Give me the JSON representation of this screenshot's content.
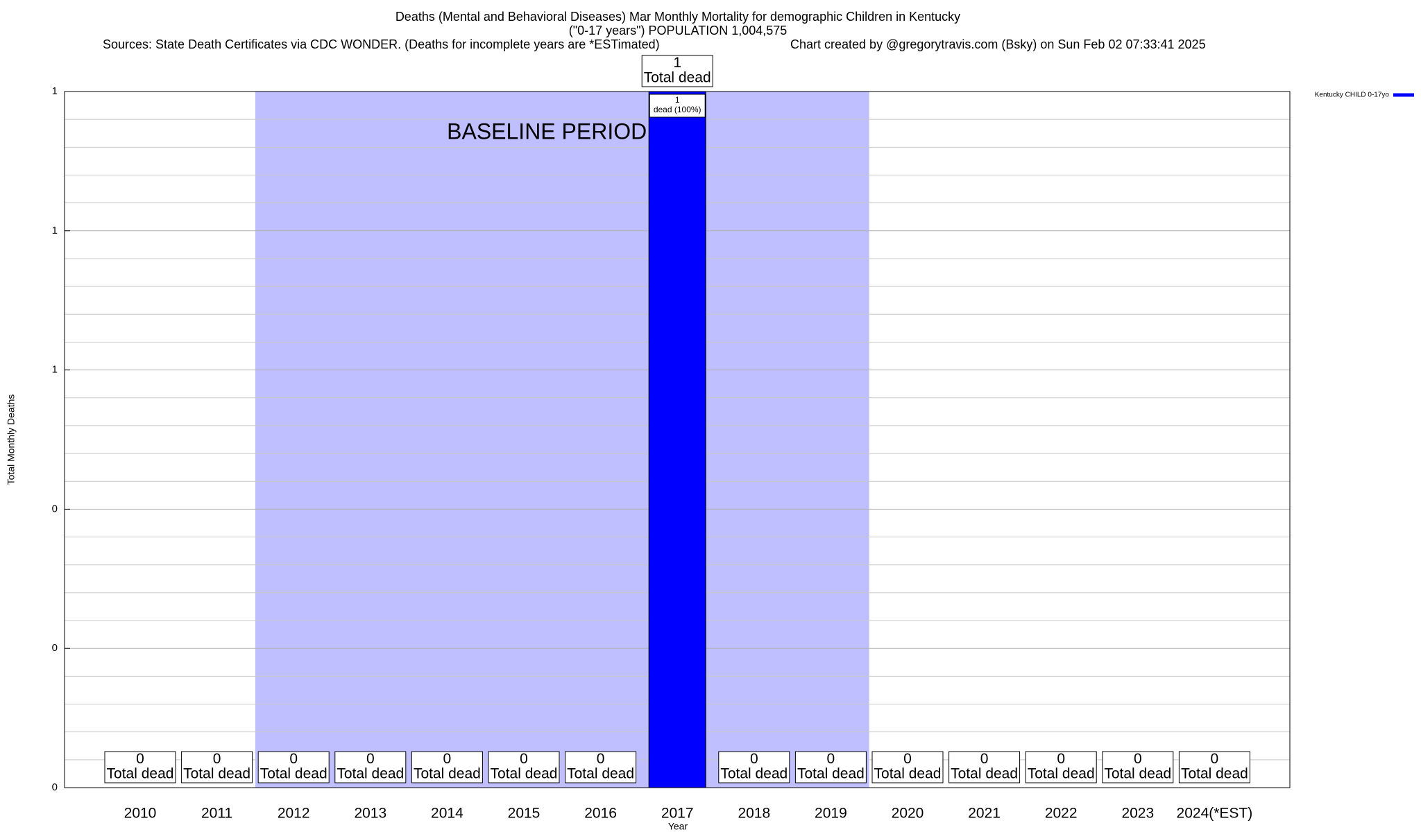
{
  "chart_data": {
    "type": "bar",
    "title": "Deaths (Mental and Behavioral Diseases) Mar Monthly Mortality for demographic Children in Kentucky",
    "subtitle": "(\"0-17 years\") POPULATION 1,004,575",
    "sources": "Sources: State Death Certificates via CDC WONDER. (Deaths for incomplete years are *ESTimated)",
    "credit": "Chart created by @gregorytravis.com (Bsky) on Sun Feb 02 07:33:41 2025",
    "x_label": "Year",
    "y_label": "Total Monthly Deaths",
    "categories": [
      "2010",
      "2011",
      "2012",
      "2013",
      "2014",
      "2015",
      "2016",
      "2017",
      "2018",
      "2019",
      "2020",
      "2021",
      "2022",
      "2023",
      "2024(*EST)"
    ],
    "series": [
      {
        "name": "Kentucky CHILD 0-17yo",
        "color": "#0000ff",
        "values": [
          0,
          0,
          0,
          0,
          0,
          0,
          0,
          1,
          0,
          0,
          0,
          0,
          0,
          0,
          0
        ],
        "percent_labels": [
          null,
          null,
          null,
          null,
          null,
          null,
          null,
          "dead (100%)",
          null,
          null,
          null,
          null,
          null,
          null,
          null
        ]
      }
    ],
    "value_caption": "Total dead",
    "baseline": {
      "label": "BASELINE PERIOD",
      "start": "2012",
      "end": "2019",
      "color": "#bfbfff"
    },
    "ylim": [
      0,
      1
    ],
    "yticks": [
      0,
      {
        "value": 0.2,
        "label": "0"
      },
      {
        "value": 0.4,
        "label": "0"
      },
      {
        "value": 0.6,
        "label": "1"
      },
      {
        "value": 0.8,
        "label": "1"
      },
      1
    ],
    "minor_yticks": [
      0.04,
      0.08,
      0.12,
      0.16,
      0.24,
      0.28,
      0.32,
      0.36,
      0.44,
      0.48,
      0.52,
      0.56,
      0.64,
      0.68,
      0.72,
      0.76,
      0.84,
      0.88,
      0.92,
      0.96
    ],
    "grid": true,
    "legend": "top-right"
  }
}
